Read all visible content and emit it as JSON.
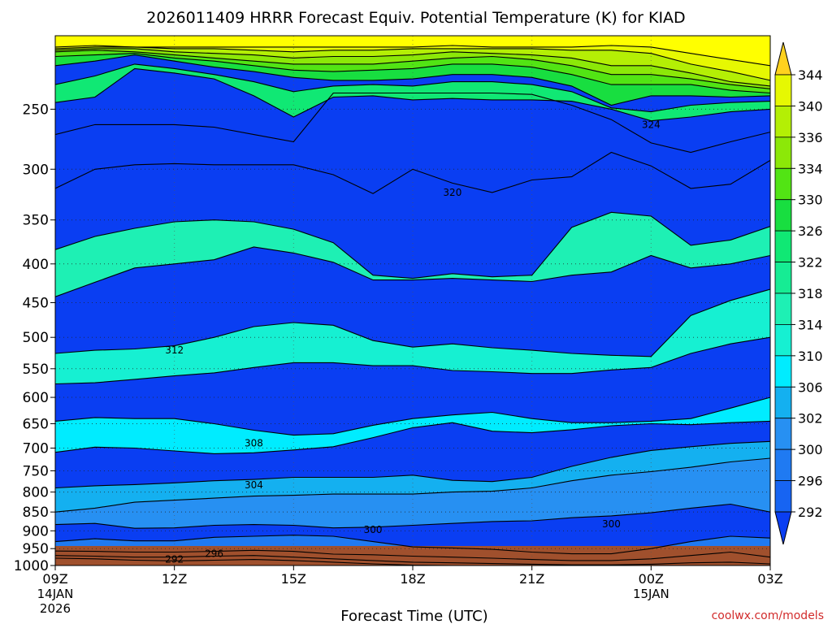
{
  "chart_data": {
    "type": "heatmap",
    "title": "2026011409 HRRR Forecast Equiv. Potential Temperature (K) for KIAD",
    "xlabel": "Forecast Time (UTC)",
    "ylabel": "",
    "credit": "coolwx.com/models",
    "x_ticks": [
      {
        "label": "09Z",
        "sub1": "14JAN",
        "sub2": "2026",
        "hour": 0
      },
      {
        "label": "12Z",
        "sub1": "",
        "sub2": "",
        "hour": 3
      },
      {
        "label": "15Z",
        "sub1": "",
        "sub2": "",
        "hour": 6
      },
      {
        "label": "18Z",
        "sub1": "",
        "sub2": "",
        "hour": 9
      },
      {
        "label": "21Z",
        "sub1": "",
        "sub2": "",
        "hour": 12
      },
      {
        "label": "00Z",
        "sub1": "15JAN",
        "sub2": "",
        "hour": 15
      },
      {
        "label": "03Z",
        "sub1": "",
        "sub2": "",
        "hour": 18
      }
    ],
    "xlim": [
      0,
      18
    ],
    "y_ticks": [
      250,
      300,
      350,
      400,
      450,
      500,
      550,
      600,
      650,
      700,
      750,
      800,
      850,
      900,
      950,
      1000
    ],
    "ylim": [
      200,
      1000
    ],
    "y_log": true,
    "grid": true,
    "colorbar": {
      "levels": [
        292,
        296,
        300,
        302,
        306,
        310,
        314,
        318,
        322,
        326,
        330,
        334,
        336,
        340,
        344
      ],
      "colors": [
        "#1764f2",
        "#1f7af2",
        "#2790f2",
        "#14b0f0",
        "#00ecff",
        "#16f0d2",
        "#1ef0b4",
        "#16ec94",
        "#10e874",
        "#18de40",
        "#52e414",
        "#8ce808",
        "#b4ef05",
        "#e6f802",
        "#ffff00"
      ],
      "below_color": "#0a3ef2",
      "above_color": "#ffd21e"
    },
    "ground_color": "#a0502d",
    "contour_labels": [
      {
        "text": "324",
        "hour": 15.0,
        "p": 262
      },
      {
        "text": "320",
        "hour": 10.0,
        "p": 322
      },
      {
        "text": "312",
        "hour": 3.0,
        "p": 520
      },
      {
        "text": "308",
        "hour": 5.0,
        "p": 690
      },
      {
        "text": "304",
        "hour": 5.0,
        "p": 783
      },
      {
        "text": "300",
        "hour": 8.0,
        "p": 897
      },
      {
        "text": "300",
        "hour": 14.0,
        "p": 882
      },
      {
        "text": "296",
        "hour": 4.0,
        "p": 965
      },
      {
        "text": "292",
        "hour": 3.0,
        "p": 982
      }
    ],
    "series": [
      {
        "level": 344,
        "values": [
          207,
          206,
          207,
          207,
          207,
          207,
          207,
          207,
          207,
          207,
          206,
          207,
          207,
          207,
          206,
          207,
          211,
          215,
          219
        ]
      },
      {
        "level": 340,
        "values": [
          208,
          207,
          207,
          208,
          208,
          209,
          210,
          209,
          209,
          208,
          208,
          208,
          208,
          209,
          209,
          211,
          218,
          223,
          229
        ]
      },
      {
        "level": 336,
        "values": [
          209,
          208,
          208,
          210,
          211,
          212,
          214,
          213,
          213,
          212,
          210,
          211,
          212,
          214,
          219,
          219,
          224,
          230,
          233
        ]
      },
      {
        "level": 334,
        "values": [
          210,
          209,
          210,
          212,
          214,
          216,
          218,
          218,
          218,
          216,
          214,
          213,
          215,
          219,
          225,
          225,
          228,
          232,
          235
        ]
      },
      {
        "level": 330,
        "values": [
          213,
          212,
          211,
          214,
          216,
          219,
          222,
          223,
          222,
          221,
          218,
          218,
          220,
          225,
          232,
          232,
          232,
          236,
          238
        ]
      },
      {
        "level": 326,
        "values": [
          219,
          216,
          212,
          216,
          220,
          223,
          227,
          229,
          229,
          228,
          225,
          225,
          227,
          233,
          247,
          240,
          240,
          241,
          240
        ]
      },
      {
        "level": 322,
        "values": [
          245,
          241,
          221,
          224,
          228,
          240,
          256,
          241,
          240,
          243,
          242,
          243,
          243,
          244,
          250,
          259,
          256,
          252,
          250
        ]
      },
      {
        "level": 318,
        "values": [
          270,
          262,
          262,
          262,
          264,
          270,
          276,
          238,
          238,
          238,
          238,
          238,
          239,
          247,
          258,
          277,
          285,
          276,
          268
        ]
      },
      {
        "level": 324,
        "values": [
          232,
          226,
          218,
          221,
          225,
          230,
          237,
          233,
          232,
          233,
          230,
          230,
          232,
          237,
          249,
          252,
          247,
          245,
          244
        ]
      },
      {
        "level": 320,
        "values": [
          318,
          300,
          296,
          295,
          296,
          296,
          296,
          305,
          323,
          300,
          313,
          322,
          310,
          307,
          285,
          297,
          318,
          314,
          292
        ]
      },
      {
        "level": 316,
        "values": [
          383,
          368,
          359,
          352,
          350,
          352,
          360,
          375,
          414,
          418,
          412,
          416,
          414,
          358,
          342,
          346,
          378,
          372,
          357
        ]
      },
      {
        "level": 314,
        "values": [
          442,
          423,
          405,
          400,
          395,
          380,
          387,
          398,
          420,
          420,
          418,
          420,
          422,
          414,
          410,
          390,
          405,
          400,
          390
        ]
      },
      {
        "level": 312,
        "values": [
          525,
          520,
          518,
          513,
          500,
          484,
          478,
          482,
          505,
          515,
          510,
          516,
          520,
          525,
          528,
          530,
          468,
          447,
          432
        ]
      },
      {
        "level": 310,
        "values": [
          576,
          574,
          568,
          562,
          557,
          548,
          540,
          540,
          545,
          545,
          553,
          555,
          558,
          558,
          552,
          548,
          525,
          510,
          500
        ]
      },
      {
        "level": 308,
        "values": [
          645,
          638,
          640,
          640,
          650,
          663,
          673,
          670,
          653,
          640,
          633,
          628,
          640,
          648,
          648,
          645,
          640,
          620,
          600
        ]
      },
      {
        "level": 306,
        "values": [
          709,
          698,
          700,
          706,
          712,
          710,
          704,
          697,
          678,
          658,
          648,
          665,
          668,
          662,
          654,
          650,
          652,
          648,
          645
        ]
      },
      {
        "level": 304,
        "values": [
          790,
          785,
          782,
          778,
          773,
          770,
          765,
          765,
          765,
          760,
          772,
          775,
          765,
          740,
          720,
          705,
          697,
          690,
          686
        ]
      },
      {
        "level": 302,
        "values": [
          850,
          840,
          825,
          820,
          815,
          810,
          808,
          805,
          805,
          805,
          800,
          798,
          790,
          773,
          760,
          752,
          742,
          730,
          722
        ]
      },
      {
        "level": 300,
        "values": [
          883,
          880,
          893,
          892,
          885,
          883,
          885,
          892,
          890,
          885,
          880,
          875,
          873,
          865,
          860,
          852,
          840,
          830,
          850
        ]
      },
      {
        "level": 298,
        "values": [
          930,
          922,
          928,
          928,
          918,
          915,
          912,
          915,
          930,
          945,
          948,
          952,
          960,
          965,
          965,
          950,
          930,
          915,
          920
        ]
      },
      {
        "level": 296,
        "values": [
          957,
          958,
          960,
          960,
          958,
          955,
          958,
          966,
          968,
          972,
          975,
          978,
          982,
          985,
          985,
          980,
          970,
          960,
          975
        ]
      },
      {
        "level": 294,
        "values": [
          970,
          972,
          975,
          975,
          972,
          970,
          975,
          980,
          985,
          990,
          992,
          994,
          996,
          998,
          998,
          996,
          992,
          990,
          995
        ]
      },
      {
        "level": 292,
        "values": [
          978,
          980,
          984,
          986,
          984,
          982,
          985,
          990,
          995,
          999,
          1000,
          1000,
          1000,
          1000,
          1000,
          1000,
          1000,
          1000,
          1000
        ]
      }
    ]
  }
}
